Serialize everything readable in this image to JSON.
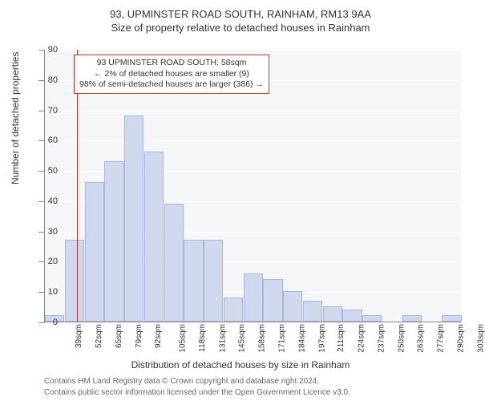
{
  "chart": {
    "type": "histogram",
    "title_line1": "93, UPMINSTER ROAD SOUTH, RAINHAM, RM13 9AA",
    "title_line2": "Size of property relative to detached houses in Rainham",
    "y_axis_label": "Number of detached properties",
    "x_axis_label": "Distribution of detached houses by size in Rainham",
    "title_fontsize": 13,
    "axis_label_fontsize": 12,
    "tick_fontsize": 11,
    "background_color": "#f5f6f8",
    "grid_color": "#ffffff",
    "bar_fill": "#cfd8ec",
    "bar_border": "#a8b6d8",
    "ref_line_color": "#c0392b",
    "annotation_border": "#c0392b",
    "ylim": [
      0,
      90
    ],
    "ytick_step": 10,
    "categories": [
      "39sqm",
      "52sqm",
      "65sqm",
      "79sqm",
      "92sqm",
      "105sqm",
      "118sqm",
      "131sqm",
      "145sqm",
      "158sqm",
      "171sqm",
      "184sqm",
      "197sqm",
      "211sqm",
      "224sqm",
      "237sqm",
      "250sqm",
      "263sqm",
      "277sqm",
      "290sqm",
      "303sqm"
    ],
    "values": [
      2,
      27,
      46,
      53,
      68,
      56,
      39,
      27,
      27,
      8,
      16,
      14,
      10,
      7,
      5,
      4,
      2,
      0,
      2,
      0,
      2
    ],
    "ref_line_at_category_index": 1,
    "annotation": {
      "line1": "93 UPMINSTER ROAD SOUTH: 58sqm",
      "line2": "← 2% of detached houses are smaller (9)",
      "line3": "98% of semi-detached houses are larger (386) →"
    },
    "footer1": "Contains HM Land Registry data © Crown copyright and database right 2024.",
    "footer2": "Contains public sector information licensed under the Open Government Licence v3.0."
  }
}
